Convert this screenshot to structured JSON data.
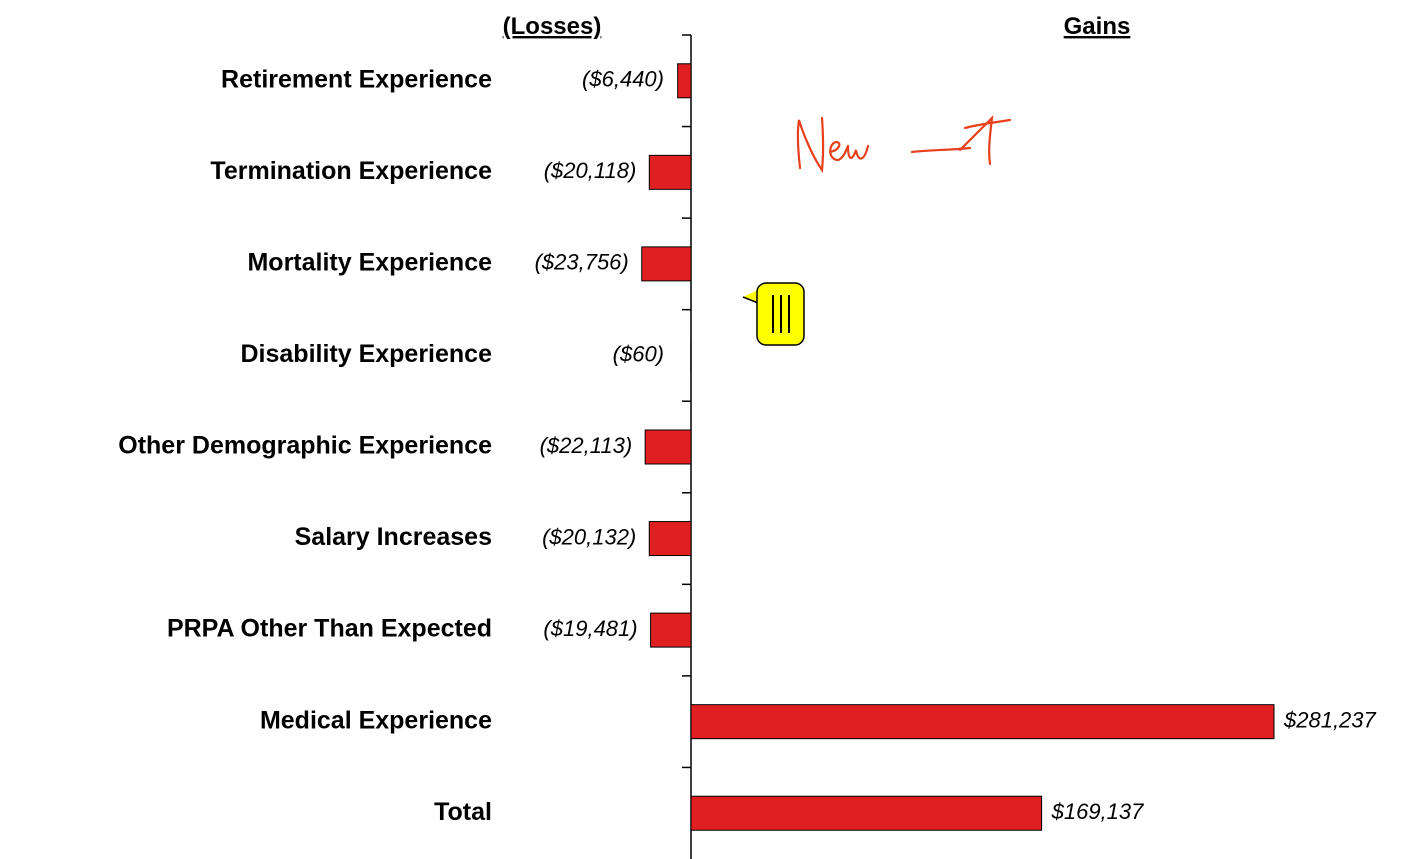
{
  "chart_data": {
    "type": "hbar",
    "left_header": "(Losses)",
    "right_header": "Gains",
    "categories": [
      "Retirement Experience",
      "Termination Experience",
      "Mortality Experience",
      "Disability Experience",
      "Other Demographic Experience",
      "Salary Increases",
      "PRPA Other Than Expected",
      "Medical Experience",
      "Total"
    ],
    "values": [
      -6440,
      -20118,
      -23756,
      -60,
      -22113,
      -20132,
      -19481,
      281237,
      169137
    ],
    "value_labels": [
      "($6,440)",
      "($20,118)",
      "($23,756)",
      "($60)",
      "($22,113)",
      "($20,132)",
      "($19,481)",
      "$281,237",
      "$169,137"
    ],
    "color": "#e02020"
  }
}
